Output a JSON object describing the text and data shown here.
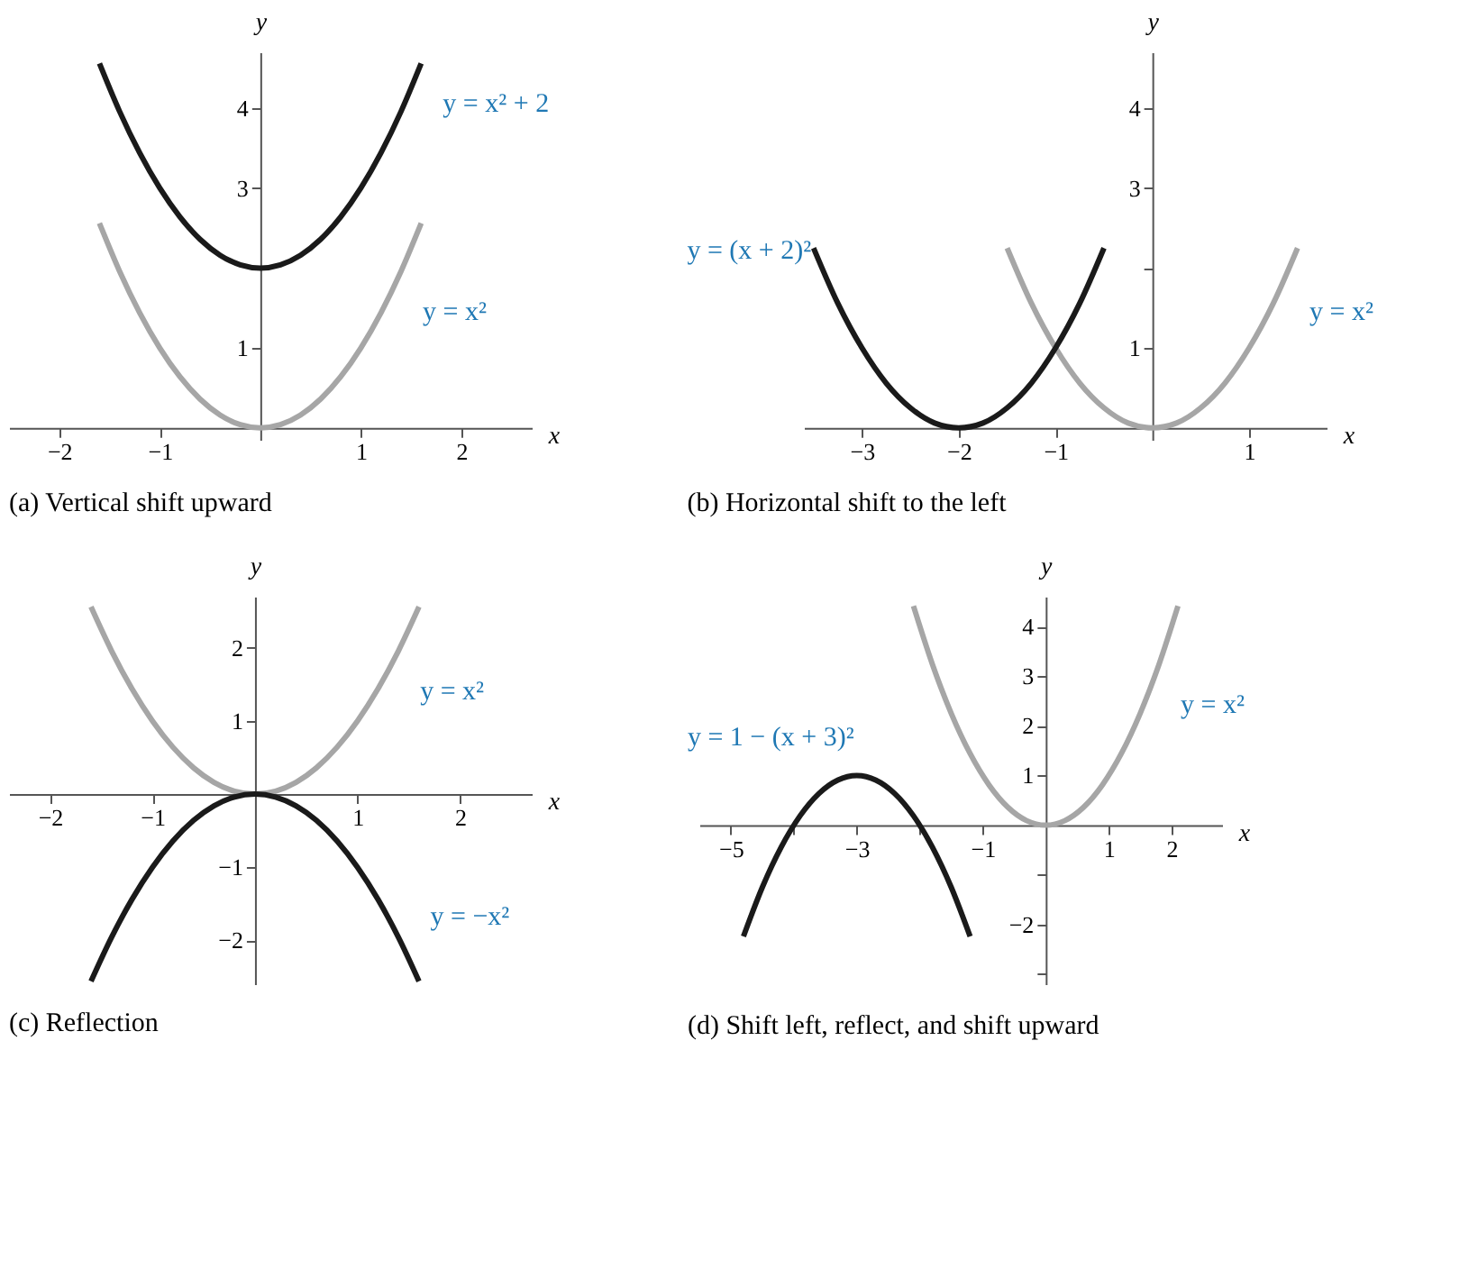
{
  "chart_data": [
    {
      "type": "line",
      "title": "(a)  Vertical shift upward",
      "xlabel": "x",
      "ylabel": "y",
      "grid": false,
      "marker": "none",
      "line_style": "solid",
      "xlim": [
        -2.5,
        2.7
      ],
      "ylim": [
        -0.15,
        4.7
      ],
      "xticks": [
        -2,
        -1,
        1,
        2
      ],
      "yticks": [
        1,
        {
          "value": 2,
          "label": null
        },
        3,
        4
      ],
      "series": [
        {
          "color": "#a6a6a6",
          "x": [
            -1.6,
            -1.4,
            -1.2,
            -1.0,
            -0.8,
            -0.6,
            -0.4,
            -0.2,
            0,
            0.2,
            0.4,
            0.6,
            0.8,
            1.0,
            1.2,
            1.4,
            1.6
          ],
          "values": [
            2.56,
            1.96,
            1.44,
            1,
            0.64,
            0.36,
            0.16,
            0.04,
            0,
            0.04,
            0.16,
            0.36,
            0.64,
            1,
            1.44,
            1.96,
            2.56
          ]
        },
        {
          "color": "#1a1a1a",
          "x": [
            -1.6,
            -1.4,
            -1.2,
            -1.0,
            -0.8,
            -0.6,
            -0.4,
            -0.2,
            0,
            0.2,
            0.4,
            0.6,
            0.8,
            1.0,
            1.2,
            1.4,
            1.6
          ],
          "values": [
            4.56,
            3.96,
            3.44,
            3,
            2.64,
            2.36,
            2.16,
            2.04,
            2,
            2.04,
            2.16,
            2.36,
            2.64,
            3,
            3.44,
            3.96,
            4.56
          ]
        }
      ],
      "annotations": [
        {
          "text": "y = x² + 2",
          "x": 1.6,
          "y": 4.56
        },
        {
          "text": "y = x²",
          "x": 1.4,
          "y": 1.96
        }
      ]
    },
    {
      "type": "line",
      "title": "(b)  Horizontal shift to the left",
      "xlabel": "x",
      "ylabel": "y",
      "grid": false,
      "marker": "none",
      "line_style": "solid",
      "xlim": [
        -3.6,
        1.8
      ],
      "ylim": [
        -0.15,
        4.7
      ],
      "xticks": [
        -3,
        -2,
        -1,
        1
      ],
      "yticks": [
        1,
        {
          "value": 2,
          "label": null
        },
        3,
        4
      ],
      "series": [
        {
          "color": "#a6a6a6",
          "x": [
            -1.5,
            -1.25,
            -1.0,
            -0.75,
            -0.5,
            -0.25,
            0,
            0.25,
            0.5,
            0.75,
            1.0,
            1.25,
            1.5
          ],
          "values": [
            2.25,
            1.56,
            1,
            0.56,
            0.25,
            0.06,
            0,
            0.06,
            0.25,
            0.56,
            1,
            1.56,
            2.25
          ]
        },
        {
          "color": "#1a1a1a",
          "x": [
            -3.5,
            -3.25,
            -3.0,
            -2.75,
            -2.5,
            -2.25,
            -2,
            -1.75,
            -1.5,
            -1.25,
            -1.0,
            -0.75,
            -0.5
          ],
          "values": [
            2.25,
            1.56,
            1,
            0.56,
            0.25,
            0.06,
            0,
            0.06,
            0.25,
            0.56,
            1,
            1.56,
            2.25
          ]
        }
      ],
      "annotations": [
        {
          "text": "y = (x + 2)²",
          "x": -3.3,
          "y": 1.69
        },
        {
          "text": "y = x²",
          "x": 1.4,
          "y": 1.96
        }
      ]
    },
    {
      "type": "line",
      "title": "(c)  Reflection",
      "xlabel": "x",
      "ylabel": "y",
      "grid": false,
      "marker": "none",
      "line_style": "solid",
      "xlim": [
        -2.4,
        2.7
      ],
      "ylim": [
        -2.6,
        2.7
      ],
      "xticks": [
        -2,
        -1,
        1,
        2
      ],
      "yticks": [
        -2,
        -1,
        1,
        2
      ],
      "series": [
        {
          "color": "#a6a6a6",
          "x": [
            -1.6,
            -1.4,
            -1.2,
            -1.0,
            -0.8,
            -0.6,
            -0.4,
            -0.2,
            0,
            0.2,
            0.4,
            0.6,
            0.8,
            1.0,
            1.2,
            1.4,
            1.6
          ],
          "values": [
            2.56,
            1.96,
            1.44,
            1,
            0.64,
            0.36,
            0.16,
            0.04,
            0,
            0.04,
            0.16,
            0.36,
            0.64,
            1,
            1.44,
            1.96,
            2.56
          ]
        },
        {
          "color": "#1a1a1a",
          "x": [
            -1.6,
            -1.4,
            -1.2,
            -1.0,
            -0.8,
            -0.6,
            -0.4,
            -0.2,
            0,
            0.2,
            0.4,
            0.6,
            0.8,
            1.0,
            1.2,
            1.4,
            1.6
          ],
          "values": [
            -2.56,
            -1.96,
            -1.44,
            -1,
            -0.64,
            -0.36,
            -0.16,
            -0.04,
            0,
            -0.04,
            -0.16,
            -0.36,
            -0.64,
            -1,
            -1.44,
            -1.96,
            -2.56
          ]
        }
      ],
      "annotations": [
        {
          "text": "y = x²",
          "x": 1.4,
          "y": 1.96
        },
        {
          "text": "y = −x²",
          "x": 1.5,
          "y": -2.25
        }
      ]
    },
    {
      "type": "line",
      "title": "(d)  Shift left, reflect, and shift upward",
      "xlabel": "x",
      "ylabel": "y",
      "grid": false,
      "marker": "none",
      "line_style": "solid",
      "xlim": [
        -5.5,
        2.8
      ],
      "ylim": [
        -3.2,
        4.6
      ],
      "xticks": [
        -5,
        {
          "value": -4,
          "label": null
        },
        -3,
        {
          "value": -2,
          "label": null
        },
        -1,
        1,
        2
      ],
      "yticks": [
        {
          "value": -3,
          "label": null
        },
        -2,
        {
          "value": -1,
          "label": null
        },
        1,
        2,
        3,
        4
      ],
      "series": [
        {
          "color": "#a6a6a6",
          "x": [
            -2.1,
            -1.8,
            -1.5,
            -1.2,
            -0.9,
            -0.6,
            -0.3,
            0,
            0.3,
            0.6,
            0.9,
            1.2,
            1.5,
            1.8,
            2.1
          ],
          "values": [
            4.41,
            3.24,
            2.25,
            1.44,
            0.81,
            0.36,
            0.09,
            0,
            0.09,
            0.36,
            0.81,
            1.44,
            2.25,
            3.24,
            4.41
          ]
        },
        {
          "color": "#1a1a1a",
          "x": [
            -4.8,
            -4.5,
            -4.2,
            -3.9,
            -3.6,
            -3.3,
            -3.0,
            -2.7,
            -2.4,
            -2.1,
            -1.8,
            -1.5,
            -1.2
          ],
          "values": [
            -2.24,
            -1.25,
            -0.44,
            0.19,
            0.64,
            0.91,
            1,
            0.91,
            0.64,
            0.19,
            -0.44,
            -1.25,
            -2.24
          ]
        }
      ],
      "annotations": [
        {
          "text": "y = 1 − (x + 3)²",
          "x": -2.7,
          "y": 0.91
        },
        {
          "text": "y = x²",
          "x": 1.8,
          "y": 3.24
        }
      ]
    }
  ]
}
